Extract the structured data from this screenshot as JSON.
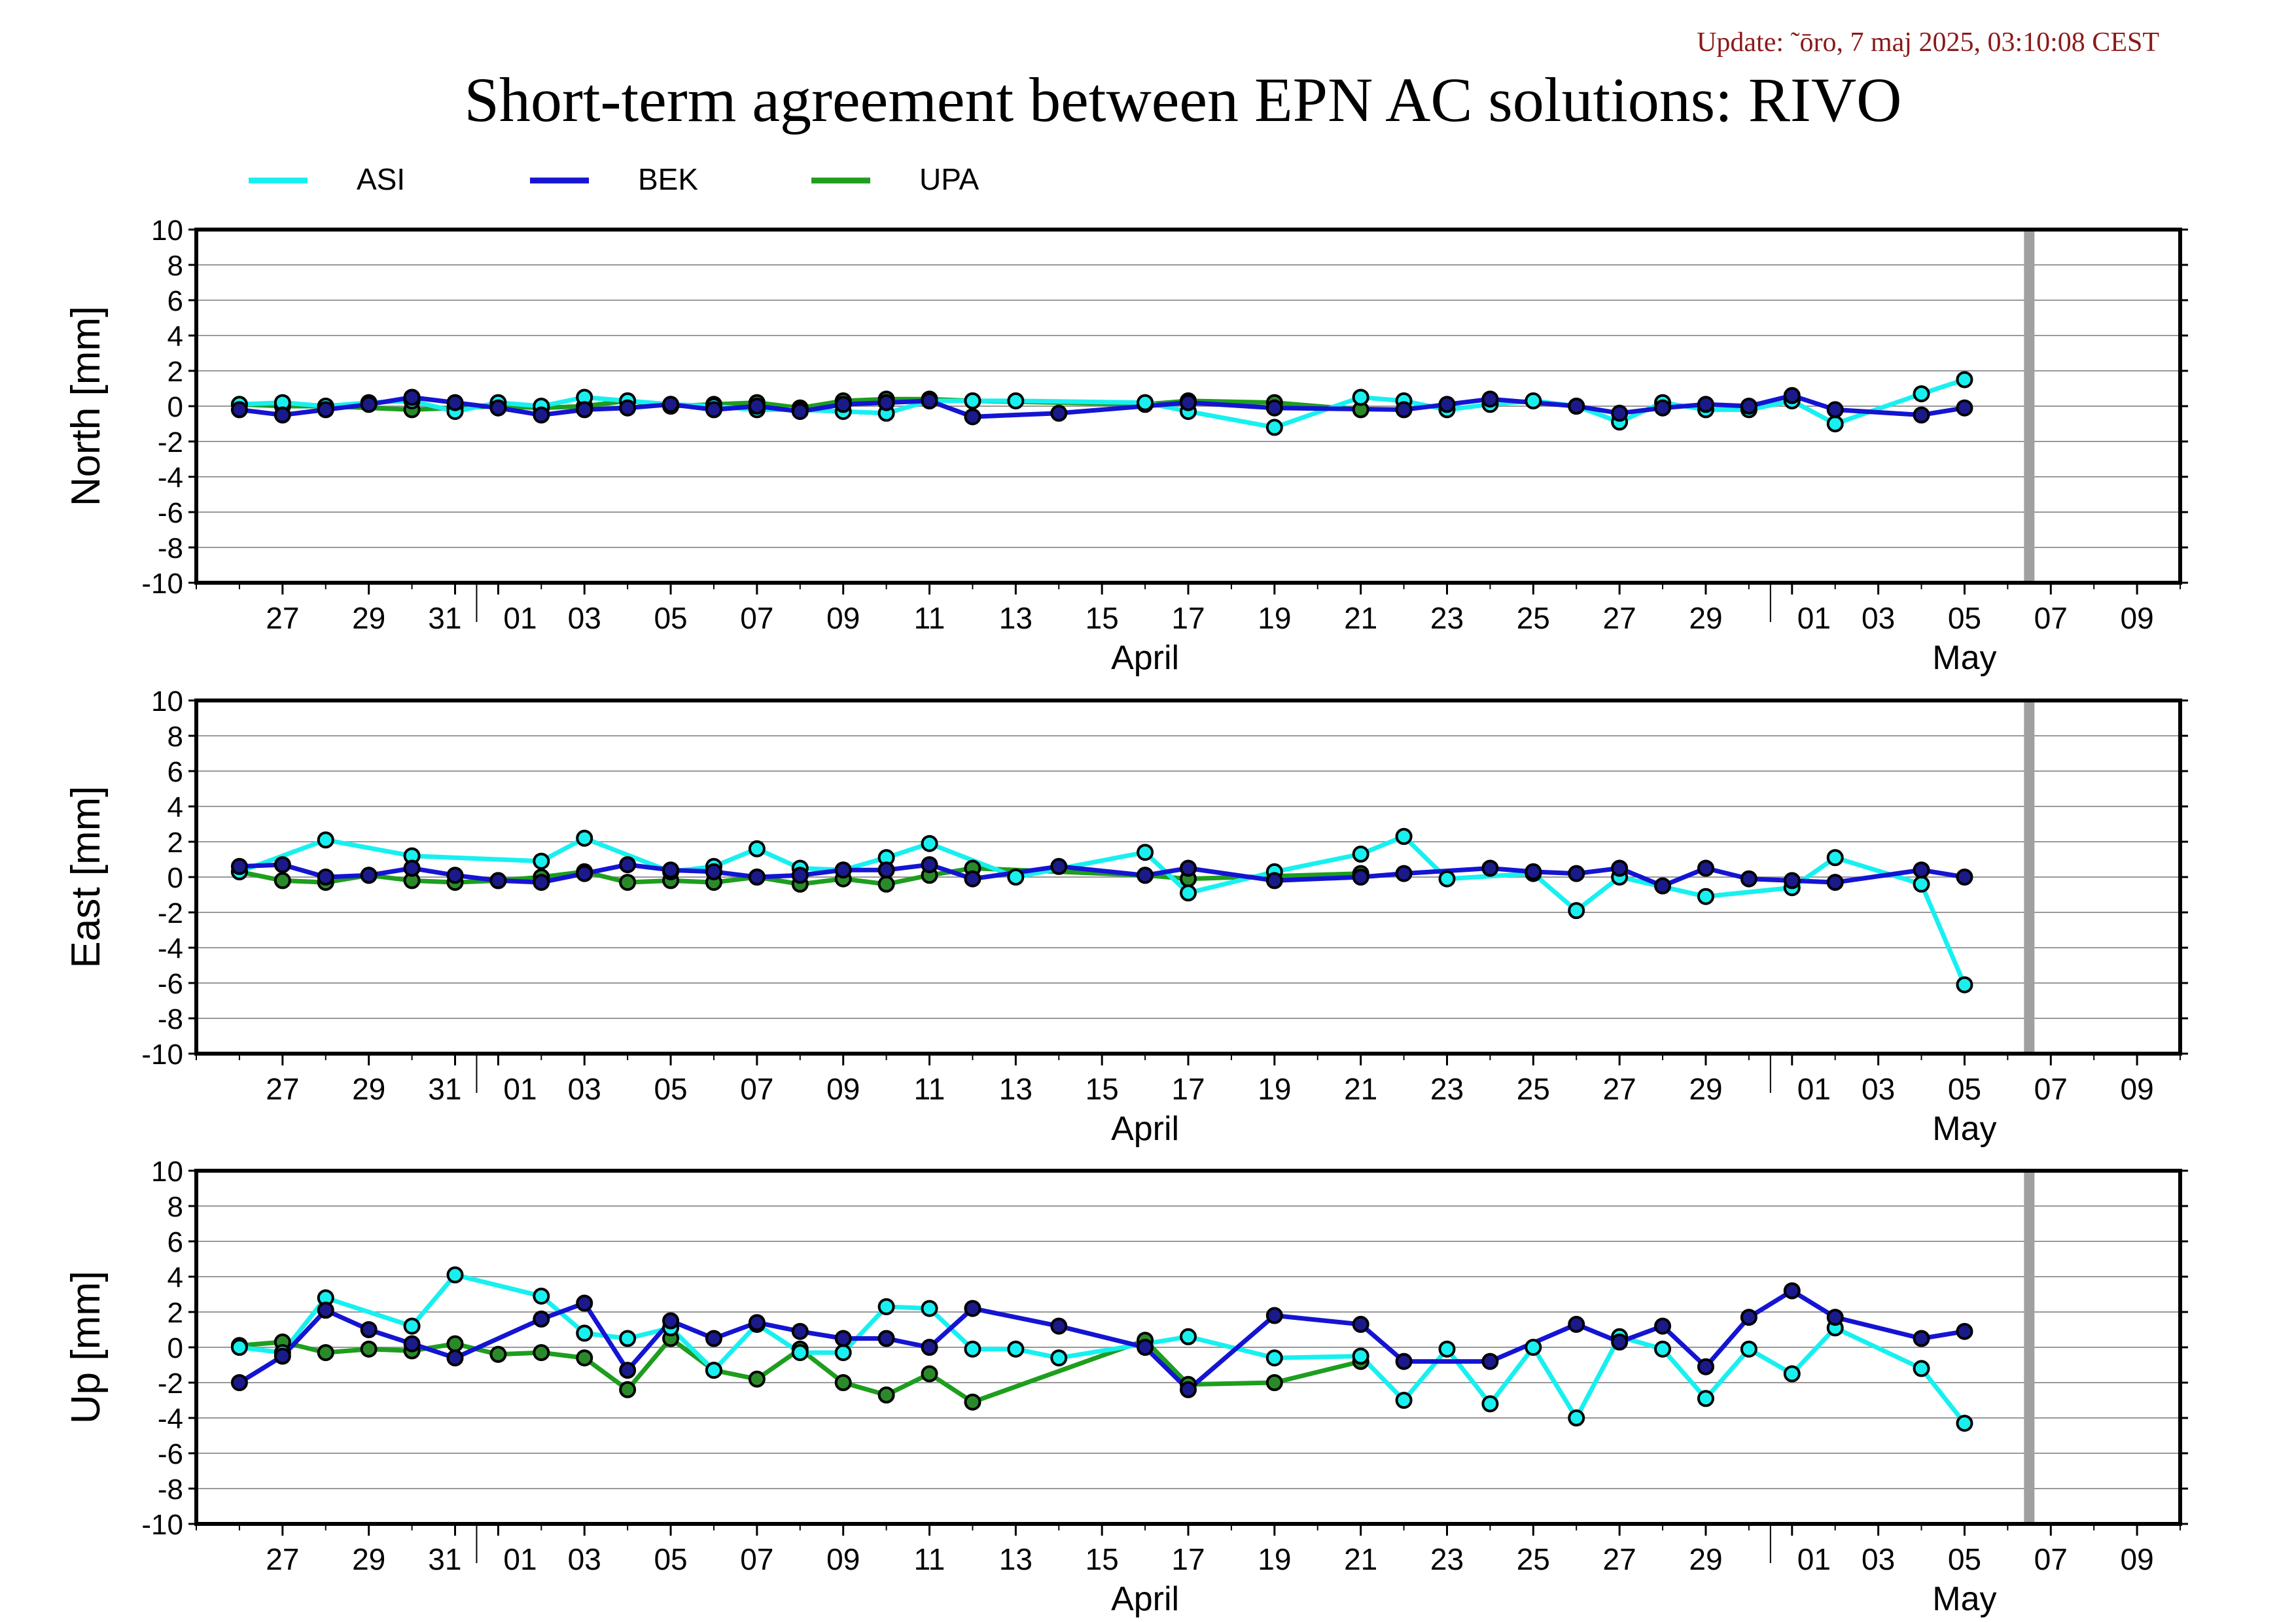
{
  "update_text": "Update: ˜ōro, 7 maj 2025, 03:10:08 CEST",
  "title": "Short-term agreement between EPN AC solutions: RIVO",
  "colors": {
    "ASI": "#18f0f0",
    "BEK": "#1414d2",
    "UPA": "#1e9e1e",
    "today_bar": "#a0a0a0",
    "update": "#8b1a1a"
  },
  "legend": [
    "ASI",
    "BEK",
    "UPA"
  ],
  "chart_data": [
    {
      "type": "line",
      "ylabel": "North [mm]",
      "ylim": [
        -10,
        10
      ],
      "yticks": [
        "10",
        "8",
        "6",
        "4",
        "2",
        "0",
        "-2",
        "-4",
        "-6",
        "-8",
        "-10"
      ],
      "xlim": [
        "2025-03-25",
        "2025-05-10"
      ],
      "xtick_labels": [
        "27",
        "29",
        "31",
        "01",
        "03",
        "05",
        "07",
        "09",
        "11",
        "13",
        "15",
        "17",
        "19",
        "21",
        "23",
        "25",
        "27",
        "29",
        "01",
        "03",
        "05",
        "07",
        "09"
      ],
      "month_labels": [
        "April",
        "May"
      ],
      "today_marker": "2025-05-06",
      "series": [
        {
          "name": "ASI",
          "x": [
            "2025-03-26",
            "2025-03-27",
            "2025-03-28",
            "2025-03-29",
            "2025-03-30",
            "2025-03-31",
            "2025-04-01",
            "2025-04-02",
            "2025-04-03",
            "2025-04-04",
            "2025-04-05",
            "2025-04-06",
            "2025-04-07",
            "2025-04-08",
            "2025-04-09",
            "2025-04-10",
            "2025-04-11",
            "2025-04-12",
            "2025-04-13",
            "2025-04-16",
            "2025-04-17",
            "2025-04-19",
            "2025-04-21",
            "2025-04-22",
            "2025-04-23",
            "2025-04-24",
            "2025-04-25",
            "2025-04-26",
            "2025-04-27",
            "2025-04-28",
            "2025-04-29",
            "2025-04-30",
            "2025-05-01",
            "2025-05-02",
            "2025-05-04",
            "2025-05-05"
          ],
          "y": [
            0.1,
            0.2,
            0.0,
            0.2,
            0.3,
            -0.3,
            0.2,
            0.0,
            0.5,
            0.3,
            0.1,
            0.0,
            -0.2,
            -0.2,
            -0.3,
            -0.4,
            0.3,
            0.3,
            0.3,
            0.2,
            -0.3,
            -1.2,
            0.5,
            0.3,
            -0.2,
            0.1,
            0.3,
            0.0,
            -0.9,
            0.2,
            -0.2,
            -0.2,
            0.3,
            -1.0,
            0.7,
            1.5
          ]
        },
        {
          "name": "BEK",
          "x": [
            "2025-03-26",
            "2025-03-27",
            "2025-03-28",
            "2025-03-29",
            "2025-03-30",
            "2025-03-31",
            "2025-04-01",
            "2025-04-02",
            "2025-04-03",
            "2025-04-04",
            "2025-04-05",
            "2025-04-06",
            "2025-04-07",
            "2025-04-08",
            "2025-04-09",
            "2025-04-10",
            "2025-04-11",
            "2025-04-12",
            "2025-04-14",
            "2025-04-17",
            "2025-04-19",
            "2025-04-22",
            "2025-04-23",
            "2025-04-24",
            "2025-04-26",
            "2025-04-27",
            "2025-04-28",
            "2025-04-29",
            "2025-04-30",
            "2025-05-01",
            "2025-05-02",
            "2025-05-04",
            "2025-05-05"
          ],
          "y": [
            -0.2,
            -0.5,
            -0.2,
            0.1,
            0.5,
            0.2,
            -0.1,
            -0.5,
            -0.2,
            -0.1,
            0.1,
            -0.2,
            0.0,
            -0.3,
            0.1,
            0.2,
            0.3,
            -0.6,
            -0.4,
            0.2,
            -0.1,
            -0.2,
            0.1,
            0.4,
            0.0,
            -0.4,
            -0.1,
            0.1,
            0.0,
            0.6,
            -0.2,
            -0.5,
            -0.1
          ]
        },
        {
          "name": "UPA",
          "x": [
            "2025-03-26",
            "2025-03-27",
            "2025-03-28",
            "2025-03-30",
            "2025-03-31",
            "2025-04-01",
            "2025-04-02",
            "2025-04-03",
            "2025-04-04",
            "2025-04-05",
            "2025-04-06",
            "2025-04-07",
            "2025-04-08",
            "2025-04-09",
            "2025-04-10",
            "2025-04-11",
            "2025-04-12",
            "2025-04-16",
            "2025-04-17",
            "2025-04-19",
            "2025-04-21"
          ],
          "y": [
            0.1,
            0.0,
            0.0,
            -0.2,
            -0.1,
            0.0,
            -0.1,
            0.0,
            0.3,
            0.0,
            0.1,
            0.2,
            -0.1,
            0.3,
            0.4,
            0.4,
            0.3,
            0.1,
            0.3,
            0.2,
            -0.2
          ]
        }
      ]
    },
    {
      "type": "line",
      "ylabel": "East [mm]",
      "ylim": [
        -10,
        10
      ],
      "yticks": [
        "10",
        "8",
        "6",
        "4",
        "2",
        "0",
        "-2",
        "-4",
        "-6",
        "-8",
        "-10"
      ],
      "xlim": [
        "2025-03-25",
        "2025-05-10"
      ],
      "xtick_labels": [
        "27",
        "29",
        "31",
        "01",
        "03",
        "05",
        "07",
        "09",
        "11",
        "13",
        "15",
        "17",
        "19",
        "21",
        "23",
        "25",
        "27",
        "29",
        "01",
        "03",
        "05",
        "07",
        "09"
      ],
      "month_labels": [
        "April",
        "May"
      ],
      "today_marker": "2025-05-06",
      "series": [
        {
          "name": "ASI",
          "x": [
            "2025-03-26",
            "2025-03-28",
            "2025-03-30",
            "2025-04-02",
            "2025-04-03",
            "2025-04-05",
            "2025-04-06",
            "2025-04-07",
            "2025-04-08",
            "2025-04-09",
            "2025-04-10",
            "2025-04-11",
            "2025-04-13",
            "2025-04-16",
            "2025-04-17",
            "2025-04-19",
            "2025-04-21",
            "2025-04-22",
            "2025-04-23",
            "2025-04-25",
            "2025-04-26",
            "2025-04-27",
            "2025-04-29",
            "2025-05-01",
            "2025-05-02",
            "2025-05-04",
            "2025-05-05"
          ],
          "y": [
            0.3,
            2.1,
            1.2,
            0.9,
            2.2,
            0.3,
            0.6,
            1.6,
            0.5,
            0.4,
            1.1,
            1.9,
            0.0,
            1.4,
            -0.9,
            0.3,
            1.3,
            2.3,
            -0.1,
            0.2,
            -1.9,
            0.0,
            -1.1,
            -0.6,
            1.1,
            -0.4,
            -6.1
          ]
        },
        {
          "name": "BEK",
          "x": [
            "2025-03-26",
            "2025-03-27",
            "2025-03-28",
            "2025-03-29",
            "2025-03-30",
            "2025-03-31",
            "2025-04-01",
            "2025-04-02",
            "2025-04-03",
            "2025-04-04",
            "2025-04-05",
            "2025-04-06",
            "2025-04-07",
            "2025-04-08",
            "2025-04-09",
            "2025-04-10",
            "2025-04-11",
            "2025-04-12",
            "2025-04-14",
            "2025-04-16",
            "2025-04-17",
            "2025-04-19",
            "2025-04-21",
            "2025-04-22",
            "2025-04-24",
            "2025-04-25",
            "2025-04-26",
            "2025-04-27",
            "2025-04-28",
            "2025-04-29",
            "2025-04-30",
            "2025-05-01",
            "2025-05-02",
            "2025-05-04",
            "2025-05-05"
          ],
          "y": [
            0.6,
            0.7,
            0.0,
            0.1,
            0.5,
            0.1,
            -0.2,
            -0.3,
            0.2,
            0.7,
            0.4,
            0.3,
            0.0,
            0.1,
            0.4,
            0.4,
            0.7,
            -0.1,
            0.6,
            0.1,
            0.5,
            -0.2,
            0.0,
            0.2,
            0.5,
            0.3,
            0.2,
            0.5,
            -0.5,
            0.5,
            -0.1,
            -0.2,
            -0.3,
            0.4,
            0.0
          ]
        },
        {
          "name": "UPA",
          "x": [
            "2025-03-26",
            "2025-03-27",
            "2025-03-28",
            "2025-03-29",
            "2025-03-30",
            "2025-03-31",
            "2025-04-01",
            "2025-04-02",
            "2025-04-03",
            "2025-04-04",
            "2025-04-05",
            "2025-04-06",
            "2025-04-07",
            "2025-04-08",
            "2025-04-09",
            "2025-04-10",
            "2025-04-11",
            "2025-04-12",
            "2025-04-16",
            "2025-04-17",
            "2025-04-21"
          ],
          "y": [
            0.3,
            -0.2,
            -0.3,
            0.1,
            -0.2,
            -0.3,
            -0.2,
            0.0,
            0.3,
            -0.3,
            -0.2,
            -0.3,
            0.0,
            -0.4,
            -0.1,
            -0.4,
            0.1,
            0.5,
            0.1,
            -0.1,
            0.2
          ]
        }
      ]
    },
    {
      "type": "line",
      "ylabel": "Up [mm]",
      "ylim": [
        -10,
        10
      ],
      "yticks": [
        "10",
        "8",
        "6",
        "4",
        "2",
        "0",
        "-2",
        "-4",
        "-6",
        "-8",
        "-10"
      ],
      "xlim": [
        "2025-03-25",
        "2025-05-10"
      ],
      "xtick_labels": [
        "27",
        "29",
        "31",
        "01",
        "03",
        "05",
        "07",
        "09",
        "11",
        "13",
        "15",
        "17",
        "19",
        "21",
        "23",
        "25",
        "27",
        "29",
        "01",
        "03",
        "05",
        "07",
        "09"
      ],
      "month_labels": [
        "April",
        "May"
      ],
      "today_marker": "2025-05-06",
      "series": [
        {
          "name": "ASI",
          "x": [
            "2025-03-26",
            "2025-03-27",
            "2025-03-28",
            "2025-03-30",
            "2025-03-31",
            "2025-04-02",
            "2025-04-03",
            "2025-04-04",
            "2025-04-05",
            "2025-04-06",
            "2025-04-07",
            "2025-04-08",
            "2025-04-09",
            "2025-04-10",
            "2025-04-11",
            "2025-04-12",
            "2025-04-13",
            "2025-04-14",
            "2025-04-17",
            "2025-04-19",
            "2025-04-21",
            "2025-04-22",
            "2025-04-23",
            "2025-04-24",
            "2025-04-25",
            "2025-04-26",
            "2025-04-27",
            "2025-04-28",
            "2025-04-29",
            "2025-04-30",
            "2025-05-01",
            "2025-05-02",
            "2025-05-04",
            "2025-05-05"
          ],
          "y": [
            0.0,
            -0.3,
            2.8,
            1.2,
            4.1,
            2.9,
            0.8,
            0.5,
            1.1,
            -1.3,
            1.3,
            -0.3,
            -0.3,
            2.3,
            2.2,
            -0.1,
            -0.1,
            -0.6,
            0.6,
            -0.6,
            -0.5,
            -3.0,
            -0.1,
            -3.2,
            0.0,
            -4.0,
            0.6,
            -0.1,
            -2.9,
            -0.1,
            -1.5,
            1.1,
            -1.2,
            -4.3
          ]
        },
        {
          "name": "BEK",
          "x": [
            "2025-03-26",
            "2025-03-27",
            "2025-03-28",
            "2025-03-29",
            "2025-03-30",
            "2025-03-31",
            "2025-04-02",
            "2025-04-03",
            "2025-04-04",
            "2025-04-05",
            "2025-04-06",
            "2025-04-07",
            "2025-04-08",
            "2025-04-09",
            "2025-04-10",
            "2025-04-11",
            "2025-04-12",
            "2025-04-14",
            "2025-04-16",
            "2025-04-17",
            "2025-04-19",
            "2025-04-21",
            "2025-04-22",
            "2025-04-24",
            "2025-04-26",
            "2025-04-27",
            "2025-04-28",
            "2025-04-29",
            "2025-04-30",
            "2025-05-01",
            "2025-05-02",
            "2025-05-04",
            "2025-05-05"
          ],
          "y": [
            -2.0,
            -0.5,
            2.1,
            1.0,
            0.2,
            -0.6,
            1.6,
            2.5,
            -1.3,
            1.5,
            0.5,
            1.4,
            0.9,
            0.5,
            0.5,
            0.0,
            2.2,
            1.2,
            0.0,
            -2.4,
            1.8,
            1.3,
            -0.8,
            -0.8,
            1.3,
            0.3,
            1.2,
            -1.1,
            1.7,
            3.2,
            1.7,
            0.5,
            0.9
          ]
        },
        {
          "name": "UPA",
          "x": [
            "2025-03-26",
            "2025-03-27",
            "2025-03-28",
            "2025-03-29",
            "2025-03-30",
            "2025-03-31",
            "2025-04-01",
            "2025-04-02",
            "2025-04-03",
            "2025-04-04",
            "2025-04-05",
            "2025-04-06",
            "2025-04-07",
            "2025-04-08",
            "2025-04-09",
            "2025-04-10",
            "2025-04-11",
            "2025-04-12",
            "2025-04-16",
            "2025-04-17",
            "2025-04-19",
            "2025-04-21"
          ],
          "y": [
            0.1,
            0.3,
            -0.3,
            -0.1,
            -0.2,
            0.2,
            -0.4,
            -0.3,
            -0.6,
            -2.4,
            0.5,
            -1.3,
            -1.8,
            -0.1,
            -2.0,
            -2.7,
            -1.5,
            -3.1,
            0.4,
            -2.1,
            -2.0,
            -0.8
          ]
        }
      ]
    }
  ]
}
